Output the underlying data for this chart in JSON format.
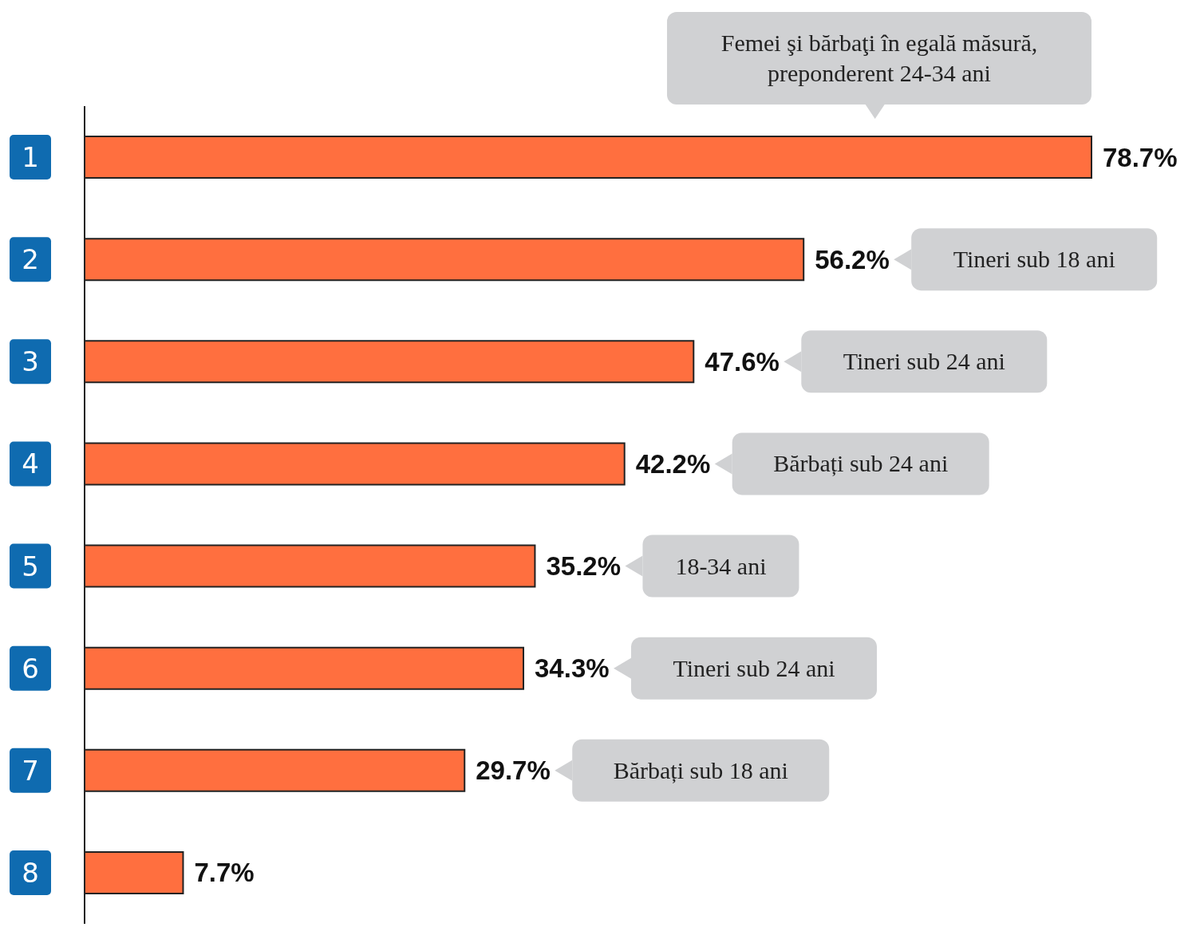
{
  "chart_data": {
    "type": "bar",
    "orientation": "horizontal",
    "categories": [
      "1",
      "2",
      "3",
      "4",
      "5",
      "6",
      "7",
      "8"
    ],
    "values": [
      78.7,
      56.2,
      47.6,
      42.2,
      35.2,
      34.3,
      29.7,
      7.7
    ],
    "value_labels": [
      "78.7%",
      "56.2%",
      "47.6%",
      "42.2%",
      "35.2%",
      "34.3%",
      "29.7%",
      "7.7%"
    ],
    "color": "#ff6f3f",
    "grid": false,
    "legend": false,
    "annotations": [
      "Femei şi bărbaţi în egală măsură, preponderent 24-34 ani",
      "Tineri sub 18 ani",
      "Tineri sub 24 ani",
      "Bărbați sub 24 ani",
      "18-34 ani",
      "Tineri sub 24 ani",
      "Bărbați sub 18 ani"
    ]
  }
}
